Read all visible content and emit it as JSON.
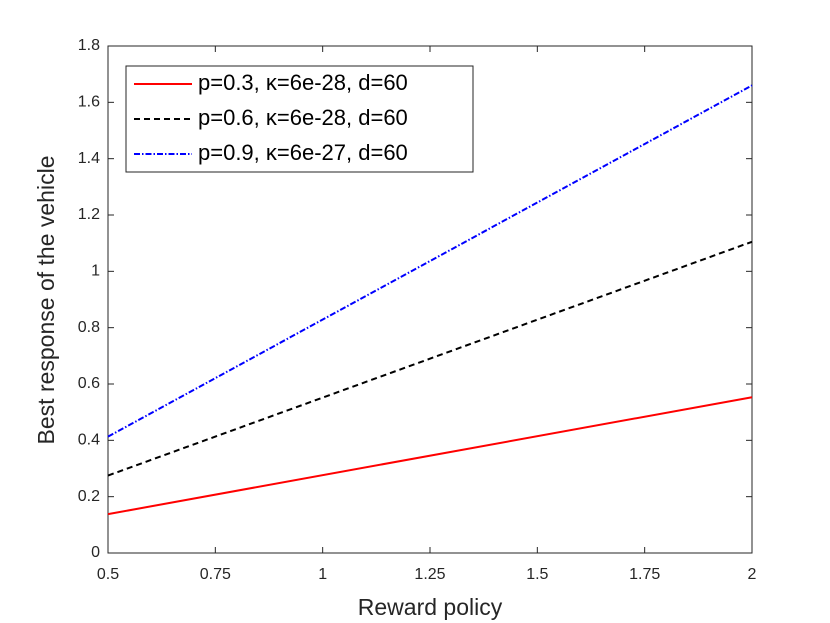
{
  "chart_data": {
    "type": "line",
    "xlabel": "Reward policy",
    "ylabel": "Best response of the vehicle",
    "x": [
      0.5,
      2
    ],
    "series": [
      {
        "name": "p=0.3, κ=6e-28, d=60",
        "color": "#ff0000",
        "linestyle": "solid",
        "values": [
          0.138,
          0.553
        ]
      },
      {
        "name": "p=0.6, κ=6e-28, d=60",
        "color": "#000000",
        "linestyle": "dashed",
        "values": [
          0.275,
          1.105
        ]
      },
      {
        "name": "p=0.9, κ=6e-27, d=60",
        "color": "#0000ff",
        "linestyle": "dashdot",
        "values": [
          0.413,
          1.66
        ]
      }
    ],
    "xlim": [
      0.5,
      2
    ],
    "xticks": [
      0.5,
      0.75,
      1,
      1.25,
      1.5,
      1.75,
      2
    ],
    "ylim": [
      0,
      1.8
    ],
    "yticks": [
      0,
      0.2,
      0.4,
      0.6,
      0.8,
      1,
      1.2,
      1.4,
      1.6,
      1.8
    ],
    "grid": false,
    "legend": "upper-left"
  }
}
